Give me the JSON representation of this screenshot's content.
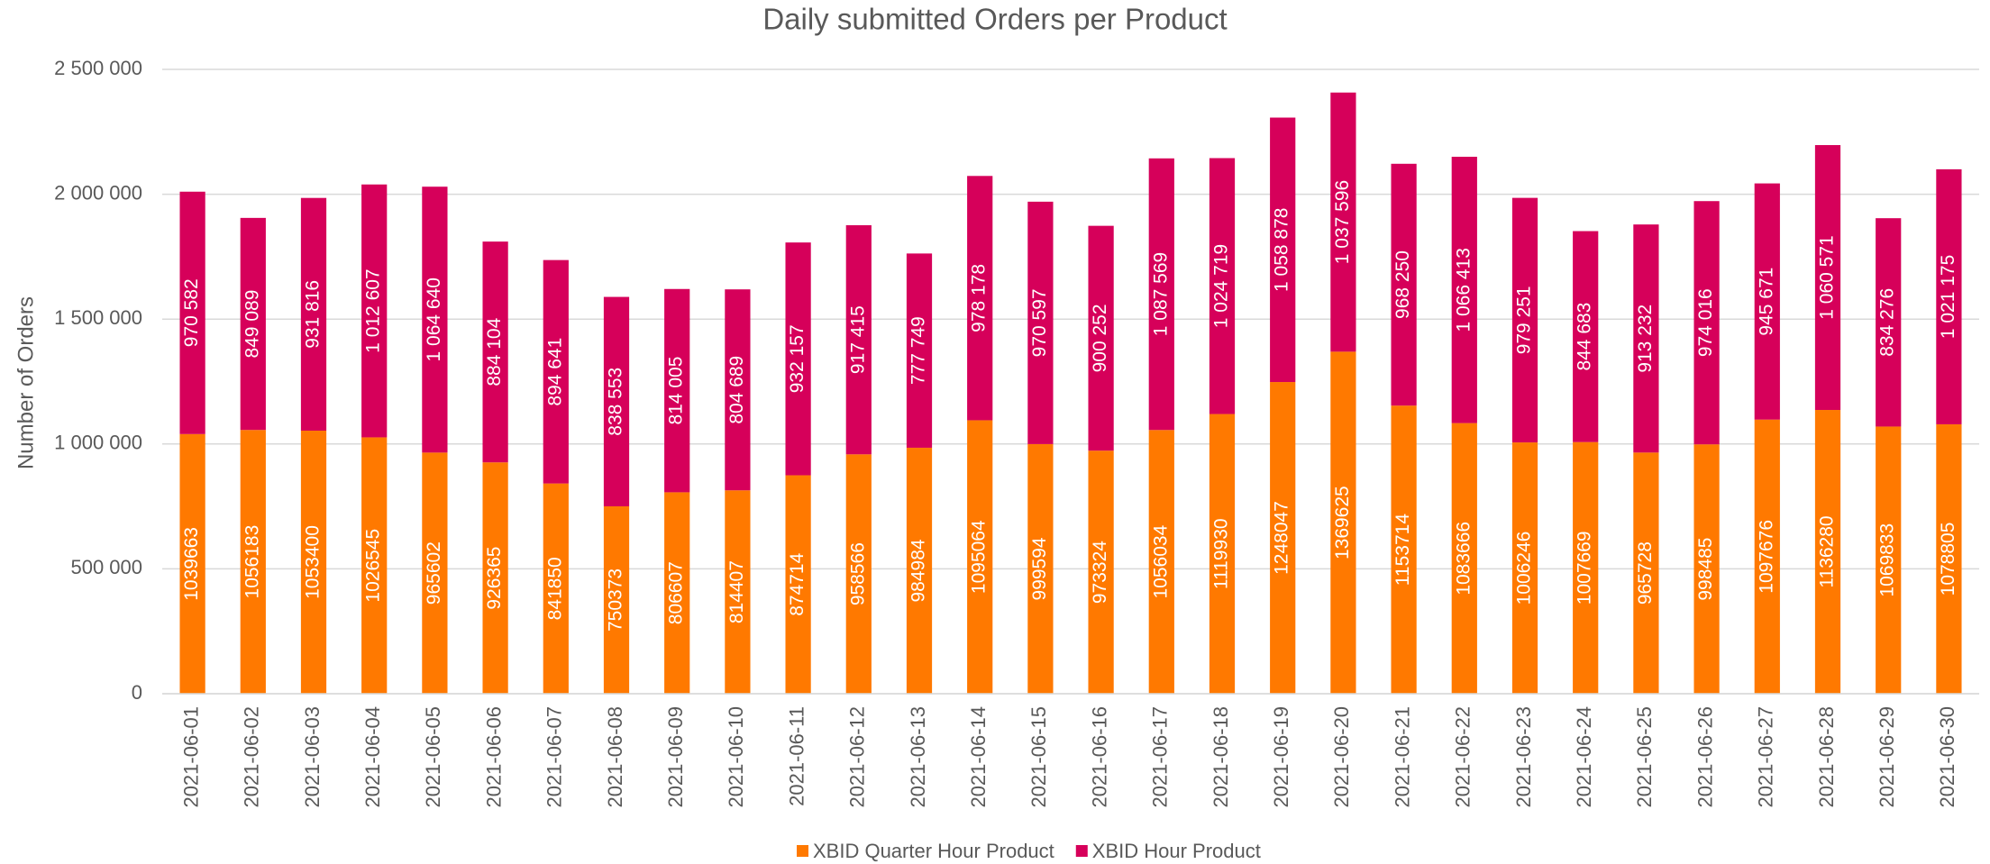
{
  "chart_data": {
    "type": "stacked_bar",
    "title": "Daily submitted Orders per Product",
    "y_label": "Number of Orders",
    "categories": [
      "2021-06-01",
      "2021-06-02",
      "2021-06-03",
      "2021-06-04",
      "2021-06-05",
      "2021-06-06",
      "2021-06-07",
      "2021-06-08",
      "2021-06-09",
      "2021-06-10",
      "2021-06-11",
      "2021-06-12",
      "2021-06-13",
      "2021-06-14",
      "2021-06-15",
      "2021-06-16",
      "2021-06-17",
      "2021-06-18",
      "2021-06-19",
      "2021-06-20",
      "2021-06-21",
      "2021-06-22",
      "2021-06-23",
      "2021-06-24",
      "2021-06-25",
      "2021-06-26",
      "2021-06-27",
      "2021-06-28",
      "2021-06-29",
      "2021-06-30"
    ],
    "series": [
      {
        "name": "XBID Quarter Hour Product",
        "color": "#ff7900",
        "values": [
          1039663,
          1056183,
          1053400,
          1026545,
          965602,
          926365,
          841850,
          750373,
          806607,
          814407,
          874714,
          958566,
          984984,
          1095064,
          999594,
          973324,
          1056034,
          1119930,
          1248047,
          1369625,
          1153714,
          1083666,
          1006246,
          1007669,
          965728,
          998485,
          1097676,
          1136280,
          1069833,
          1078805
        ]
      },
      {
        "name": "XBID Hour Product",
        "color": "#d6005a",
        "values": [
          970582,
          849089,
          931816,
          1012607,
          1064640,
          884104,
          894641,
          838553,
          814005,
          804689,
          932157,
          917415,
          777749,
          978178,
          970597,
          900252,
          1087569,
          1024719,
          1058878,
          1037596,
          968250,
          1066413,
          979251,
          844683,
          913232,
          974016,
          945671,
          1060571,
          834276,
          1021175
        ],
        "value_labels": [
          "970 582",
          "849 089",
          "931 816",
          "1 012 607",
          "1 064 640",
          "884 104",
          "894 641",
          "838 553",
          "814 005",
          "804 689",
          "932 157",
          "917 415",
          "777 749",
          "978 178",
          "970 597",
          "900 252",
          "1 087 569",
          "1 024 719",
          "1 058 878",
          "1 037 596",
          "968 250",
          "1 066 413",
          "979 251",
          "844 683",
          "913 232",
          "974 016",
          "945 671",
          "1 060 571",
          "834 276",
          "1 021 175"
        ]
      }
    ],
    "ylim": [
      0,
      2500000
    ],
    "yticks": [
      0,
      {
        "value": 500000,
        "label": "500 000"
      },
      {
        "value": 1000000,
        "label": "1 000 000"
      },
      {
        "value": 1500000,
        "label": "1 500 000"
      },
      {
        "value": 2000000,
        "label": "2 000 000"
      },
      {
        "value": 2500000,
        "label": "2 500 000"
      }
    ],
    "grid": true,
    "legend": "bottom"
  }
}
